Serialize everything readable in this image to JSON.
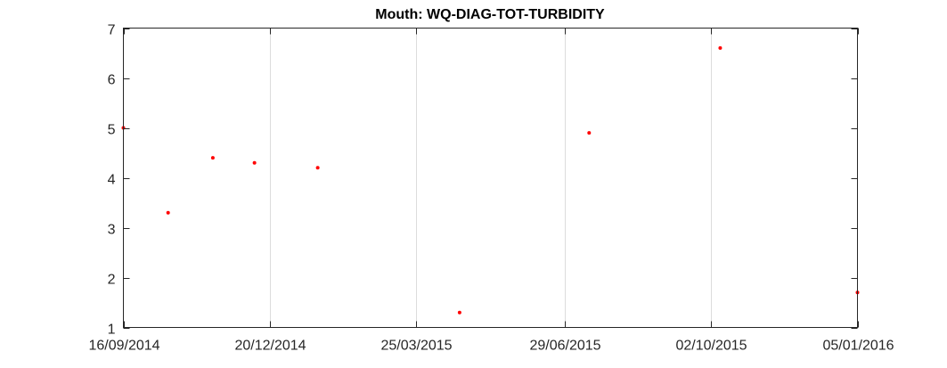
{
  "chart_data": {
    "type": "scatter",
    "title": "Mouth: WQ-DIAG-TOT-TURBIDITY",
    "xlabel": "",
    "ylabel": "",
    "x_type": "date",
    "xlim": [
      "2014-09-16",
      "2016-01-05"
    ],
    "ylim": [
      1,
      7
    ],
    "x_ticks": [
      {
        "value": "2014-09-16",
        "label": "16/09/2014"
      },
      {
        "value": "2014-12-20",
        "label": "20/12/2014"
      },
      {
        "value": "2015-03-25",
        "label": "25/03/2015"
      },
      {
        "value": "2015-06-29",
        "label": "29/06/2015"
      },
      {
        "value": "2015-10-02",
        "label": "02/10/2015"
      },
      {
        "value": "2016-01-05",
        "label": "05/01/2016"
      }
    ],
    "y_ticks": [
      1,
      2,
      3,
      4,
      5,
      6,
      7
    ],
    "grid": "vertical",
    "marker_color": "#ff0000",
    "series": [
      {
        "points": [
          {
            "x": "2014-09-16",
            "y": 5.0
          },
          {
            "x": "2014-10-15",
            "y": 3.3
          },
          {
            "x": "2014-11-13",
            "y": 4.4
          },
          {
            "x": "2014-12-10",
            "y": 4.3
          },
          {
            "x": "2015-01-20",
            "y": 4.2
          },
          {
            "x": "2015-04-22",
            "y": 1.3
          },
          {
            "x": "2015-07-15",
            "y": 4.9
          },
          {
            "x": "2015-10-08",
            "y": 6.6
          },
          {
            "x": "2016-01-05",
            "y": 1.7
          }
        ]
      }
    ]
  }
}
